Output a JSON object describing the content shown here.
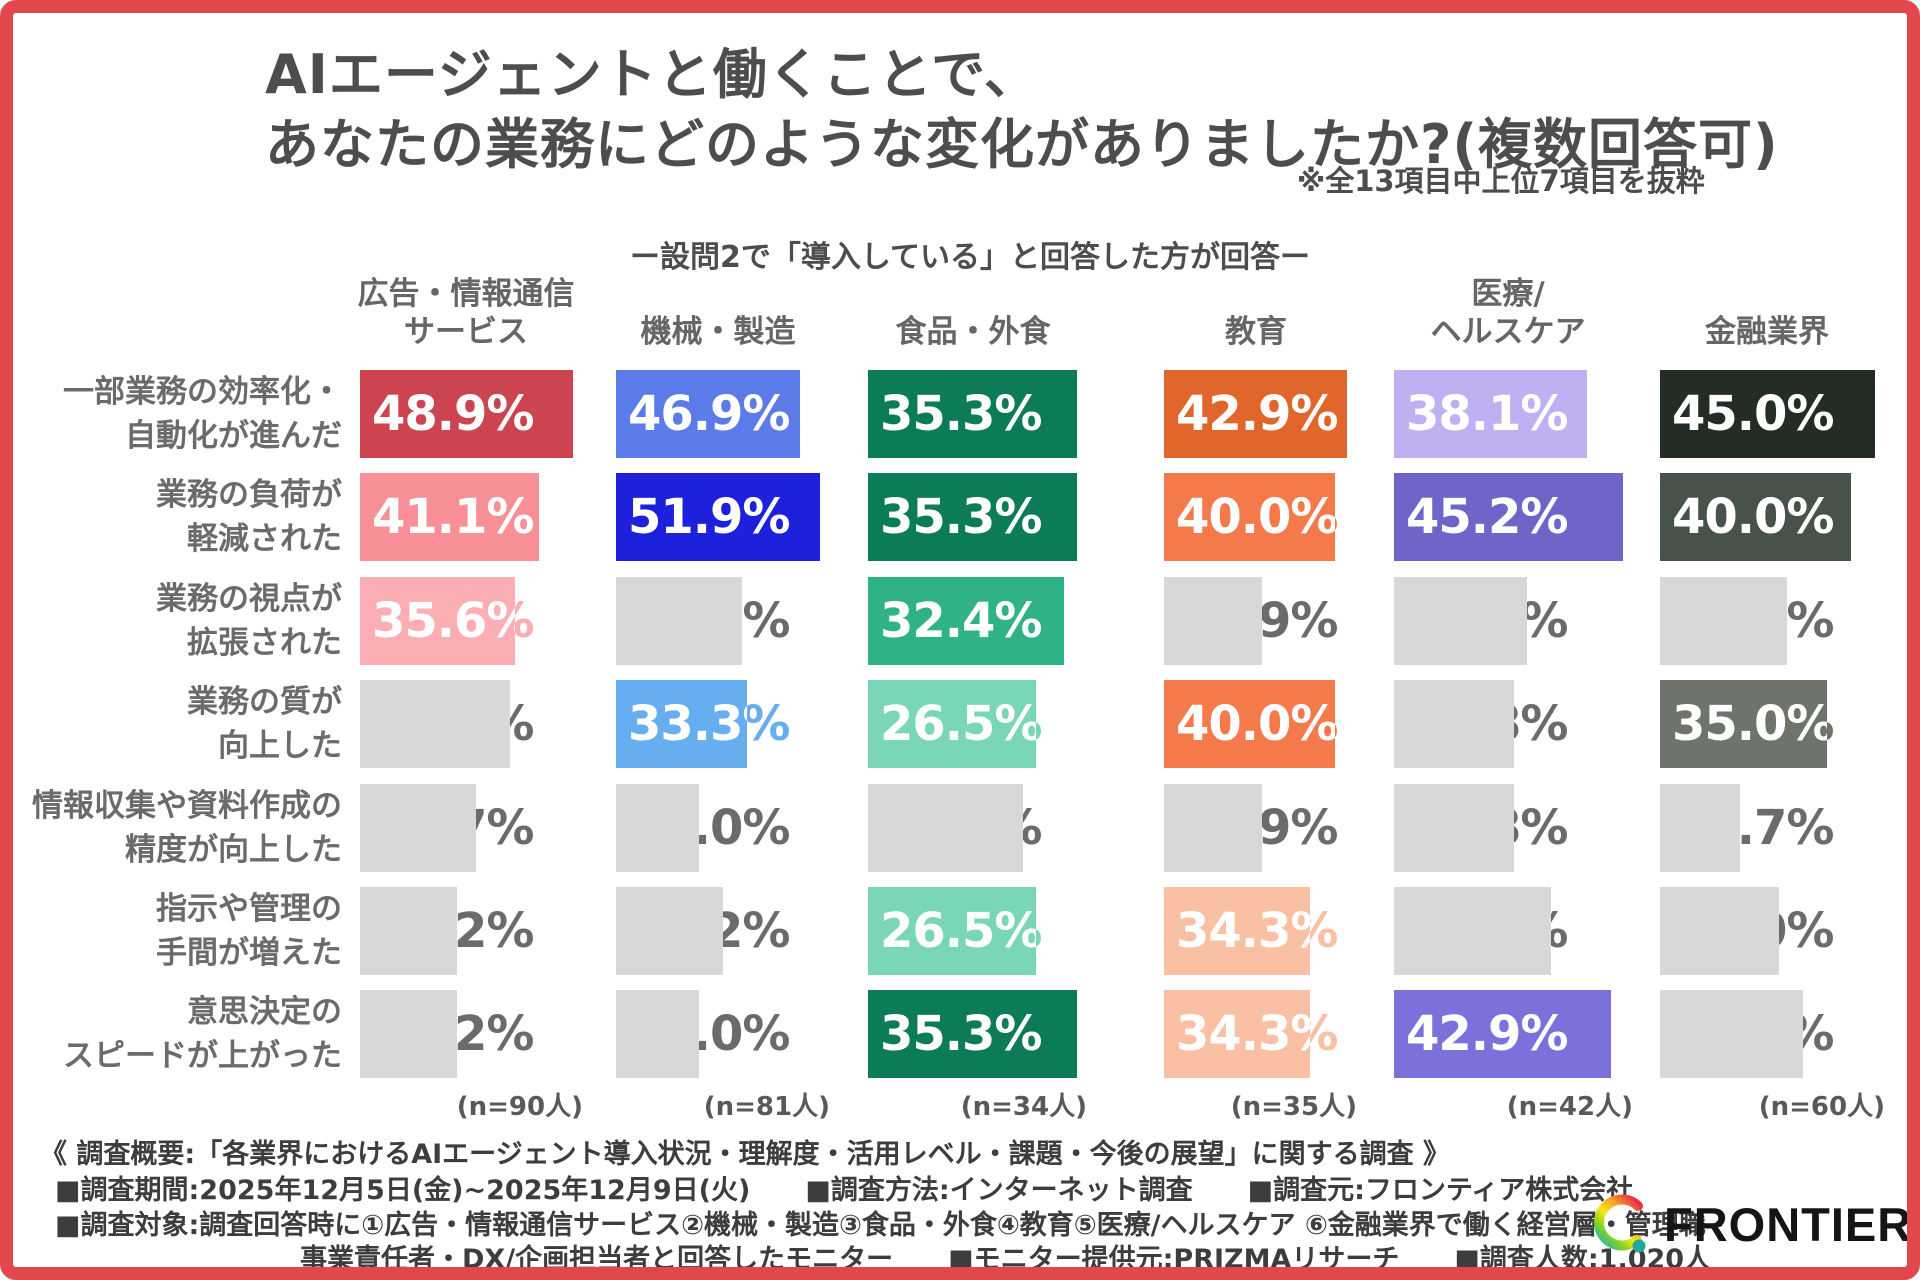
{
  "title": {
    "line1": "AIエージェントと働くことで、",
    "line2": "あなたの業務にどのような変化がありましたか?(複数回答可)"
  },
  "note": "※全13項目中上位7項目を抜粋",
  "subtitle": "ー設問2で「導入している」と回答した方が回答ー",
  "chart_data": {
    "type": "bar",
    "orientation": "horizontal",
    "unit": "%",
    "categories": [
      "一部業務の効率化・自動化が進んだ",
      "業務の負荷が軽減された",
      "業務の視点が拡張された",
      "業務の質が向上した",
      "情報収集や資料作成の精度が向上した",
      "指示や管理の手間が増えた",
      "意思決定のスピードが上がった"
    ],
    "category_label_lines": [
      [
        "一部業務の効率化・",
        "自動化が進んだ"
      ],
      [
        "業務の負荷が",
        "軽減された"
      ],
      [
        "業務の視点が",
        "拡張された"
      ],
      [
        "業務の質が",
        "向上した"
      ],
      [
        "情報収集や資料作成の",
        "精度が向上した"
      ],
      [
        "指示や管理の",
        "手間が増えた"
      ],
      [
        "意思決定の",
        "スピードが上がった"
      ]
    ],
    "series": [
      {
        "name": "広告・情報通信サービス",
        "label_lines": [
          "広告・情報通信",
          "サービス"
        ],
        "n_label": "(n=90人)",
        "values": [
          48.9,
          41.1,
          35.6,
          34.4,
          26.7,
          22.2,
          22.2
        ],
        "bar_colors": [
          "#CB4450",
          "#F98F97",
          "#FBAFB4",
          null,
          null,
          null,
          null
        ]
      },
      {
        "name": "機械・製造",
        "label_lines": [
          "機械・製造"
        ],
        "n_label": "(n=81人)",
        "values": [
          46.9,
          51.9,
          32.1,
          33.3,
          21.0,
          27.2,
          21.0
        ],
        "bar_colors": [
          "#5A7BE8",
          "#1D21DC",
          null,
          "#66AEF0",
          null,
          null,
          null
        ]
      },
      {
        "name": "食品・外食",
        "label_lines": [
          "食品・外食"
        ],
        "n_label": "(n=34人)",
        "values": [
          35.3,
          35.3,
          32.4,
          26.5,
          23.5,
          26.5,
          35.3
        ],
        "bar_colors": [
          "#0B7B58",
          "#0B7B58",
          "#2EB286",
          "#79D7B6",
          null,
          "#79D7B6",
          "#0B7B58"
        ]
      },
      {
        "name": "教育",
        "label_lines": [
          "教育"
        ],
        "n_label": "(n=35人)",
        "values": [
          42.9,
          40.0,
          22.9,
          40.0,
          22.9,
          34.3,
          34.3
        ],
        "bar_colors": [
          "#E0662B",
          "#F4794B",
          null,
          "#F4794B",
          null,
          "#FAC0A3",
          "#FAC0A3"
        ]
      },
      {
        "name": "医療/ヘルスケア",
        "label_lines": [
          "医療/",
          "ヘルスケア"
        ],
        "n_label": "(n=42人)",
        "values": [
          38.1,
          45.2,
          26.2,
          23.8,
          23.8,
          31.0,
          42.9
        ],
        "bar_colors": [
          "#BFB0F2",
          "#6F65C9",
          null,
          null,
          null,
          null,
          "#7C71DB"
        ]
      },
      {
        "name": "金融業界",
        "label_lines": [
          "金融業界"
        ],
        "n_label": "(n=60人)",
        "values": [
          45.0,
          40.0,
          26.7,
          35.0,
          16.7,
          25.0,
          30.0
        ],
        "bar_colors": [
          "#242D25",
          "#47524A",
          null,
          "#6E746C",
          null,
          null,
          null
        ]
      }
    ],
    "gray_bar_color": "#D8D8D8",
    "gray_text_color": "#6B6B6B",
    "value_text_color_on_bar": "#FFFFFF"
  },
  "footer": {
    "line1": "《 調査概要:「各業界におけるAIエージェント導入状況・理解度・活用レベル・課題・今後の展望」に関する調査 》",
    "line2_items": [
      "■調査期間:2025年12月5日(金)~2025年12月9日(火)",
      "■調査方法:インターネット調査",
      "■調査元:フロンティア株式会社"
    ],
    "line3": "■調査対象:調査回答時に①広告・情報通信サービス②機械・製造③食品・外食④教育⑤医療/ヘルスケア ⑥金融業界で働く経営層・管理職・",
    "line4_items": [
      "事業責任者・DX/企画担当者と回答したモニター",
      "■モニター提供元:PRIZMAリサーチ",
      "■調査人数:1,020人"
    ]
  },
  "logo": {
    "text": "FRONTIER"
  },
  "colors": {
    "frame_border": "#E2474D",
    "title_text": "#4D4D4D",
    "header_text": "#666666",
    "row_label_text": "#6B6B6B",
    "footer_text": "#3D3D3D"
  }
}
